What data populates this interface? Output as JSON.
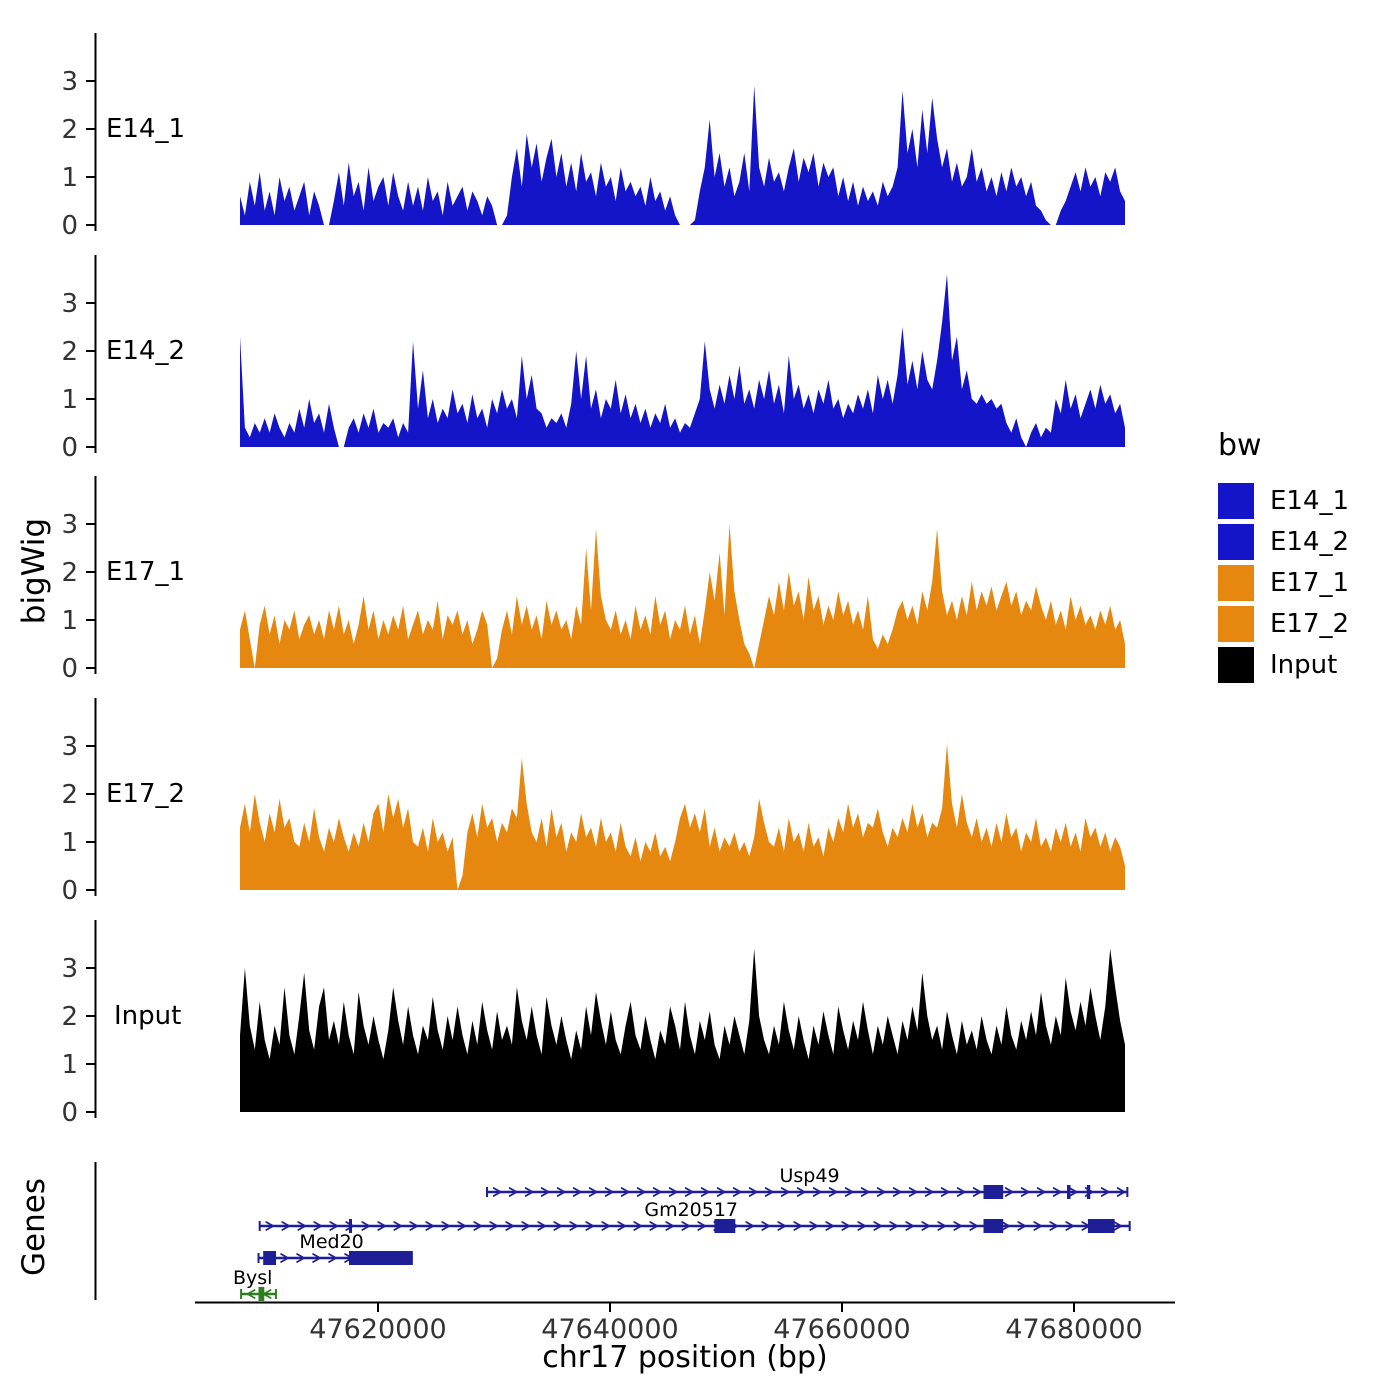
{
  "axes": {
    "y_title": "bigWig",
    "genes_title": "Genes",
    "x_title": "chr17 position (bp)"
  },
  "y_ticks": [
    0,
    1,
    2,
    3
  ],
  "x_ticks": [
    {
      "bp": 47620000,
      "label": "47620000"
    },
    {
      "bp": 47640000,
      "label": "47640000"
    },
    {
      "bp": 47660000,
      "label": "47660000"
    },
    {
      "bp": 47680000,
      "label": "47680000"
    }
  ],
  "chart_data": {
    "type": "area",
    "title": "",
    "xlabel": "chr17 position (bp)",
    "ylabel": "bigWig",
    "x_start": 47608100,
    "x_end": 47684400,
    "ylim": [
      0,
      3.6
    ],
    "tracks": [
      {
        "name": "E14_1",
        "color": "#1414C8",
        "values": [
          0.6,
          0.2,
          0.9,
          0.4,
          1.1,
          0.3,
          0.7,
          0.2,
          1.0,
          0.5,
          0.8,
          0.3,
          0.6,
          0.9,
          0.2,
          0.7,
          0.4,
          0.0,
          0.0,
          0.5,
          1.1,
          0.4,
          1.3,
          0.6,
          0.9,
          0.3,
          1.2,
          0.5,
          0.8,
          1.0,
          0.4,
          1.1,
          0.6,
          0.3,
          0.9,
          0.4,
          0.8,
          0.3,
          1.0,
          0.5,
          0.7,
          0.2,
          0.9,
          0.4,
          0.6,
          0.8,
          0.3,
          0.7,
          0.5,
          0.2,
          0.6,
          0.4,
          0.0,
          0.0,
          0.2,
          1.0,
          1.6,
          0.8,
          1.9,
          1.2,
          1.7,
          0.9,
          1.4,
          1.8,
          1.0,
          1.5,
          0.8,
          1.3,
          0.7,
          1.5,
          0.9,
          1.1,
          0.6,
          1.3,
          0.8,
          1.0,
          0.5,
          1.2,
          0.7,
          0.9,
          0.6,
          0.8,
          0.4,
          1.0,
          0.5,
          0.7,
          0.3,
          0.6,
          0.2,
          0.0,
          0.0,
          0.0,
          0.1,
          0.7,
          1.2,
          2.2,
          1.0,
          1.5,
          0.8,
          1.2,
          0.6,
          0.9,
          1.5,
          0.7,
          2.9,
          1.2,
          0.8,
          1.4,
          0.9,
          1.1,
          0.7,
          1.2,
          1.6,
          0.9,
          1.4,
          1.1,
          1.5,
          0.8,
          1.3,
          1.0,
          1.2,
          0.6,
          1.0,
          0.5,
          0.9,
          0.4,
          0.8,
          0.5,
          0.7,
          0.4,
          0.9,
          0.6,
          0.8,
          1.2,
          2.8,
          1.5,
          2.0,
          1.2,
          2.4,
          1.5,
          2.65,
          1.8,
          1.2,
          1.6,
          0.9,
          1.3,
          0.8,
          1.0,
          1.6,
          0.9,
          1.2,
          0.7,
          1.0,
          0.6,
          1.1,
          0.7,
          1.2,
          0.8,
          1.0,
          0.6,
          0.9,
          0.4,
          0.3,
          0.1,
          0.0,
          0.0,
          0.3,
          0.5,
          0.8,
          1.1,
          0.7,
          1.2,
          0.8,
          1.0,
          0.6,
          1.1,
          0.9,
          1.2,
          0.7,
          0.5
        ]
      },
      {
        "name": "E14_2",
        "color": "#1414C8",
        "values": [
          2.3,
          0.4,
          0.2,
          0.5,
          0.3,
          0.6,
          0.3,
          0.7,
          0.4,
          0.2,
          0.5,
          0.3,
          0.8,
          0.4,
          1.0,
          0.5,
          0.7,
          0.3,
          0.9,
          0.4,
          0.0,
          0.0,
          0.4,
          0.6,
          0.3,
          0.7,
          0.4,
          0.8,
          0.3,
          0.5,
          0.4,
          0.6,
          0.2,
          0.5,
          0.3,
          2.2,
          0.8,
          1.6,
          0.6,
          1.0,
          0.5,
          0.8,
          0.6,
          1.2,
          0.7,
          0.9,
          0.5,
          1.1,
          0.6,
          0.8,
          0.4,
          1.0,
          0.7,
          1.2,
          0.8,
          1.0,
          0.6,
          1.9,
          1.0,
          1.5,
          0.8,
          0.7,
          0.4,
          0.6,
          0.5,
          0.7,
          0.4,
          0.9,
          2.0,
          1.0,
          1.9,
          0.8,
          1.2,
          0.6,
          1.0,
          0.8,
          1.4,
          0.7,
          1.1,
          0.6,
          0.9,
          0.5,
          0.8,
          0.4,
          0.7,
          0.5,
          0.9,
          0.4,
          0.6,
          0.3,
          0.5,
          0.4,
          0.7,
          1.0,
          2.2,
          1.2,
          0.8,
          1.3,
          0.9,
          1.5,
          1.0,
          1.7,
          0.9,
          1.2,
          0.8,
          1.4,
          1.0,
          1.6,
          0.9,
          1.3,
          0.7,
          1.9,
          1.0,
          1.3,
          0.8,
          1.1,
          0.7,
          1.2,
          0.9,
          1.4,
          0.8,
          1.0,
          0.6,
          0.9,
          0.7,
          1.1,
          0.8,
          1.2,
          0.7,
          1.5,
          1.0,
          1.4,
          0.9,
          1.5,
          2.5,
          1.3,
          1.8,
          1.2,
          2.0,
          1.4,
          1.2,
          1.8,
          2.6,
          3.6,
          1.8,
          2.3,
          1.2,
          1.6,
          1.0,
          0.9,
          1.1,
          0.9,
          1.0,
          0.8,
          0.9,
          0.5,
          0.3,
          0.6,
          0.2,
          0.0,
          0.3,
          0.5,
          0.2,
          0.4,
          0.3,
          1.0,
          0.7,
          1.4,
          0.8,
          1.1,
          0.6,
          0.9,
          1.2,
          0.8,
          1.3,
          0.9,
          1.1,
          0.7,
          0.9,
          0.4
        ]
      },
      {
        "name": "E17_1",
        "color": "#E6870F",
        "values": [
          0.8,
          1.2,
          0.6,
          0.0,
          0.9,
          1.3,
          0.7,
          1.1,
          0.5,
          1.0,
          0.8,
          1.2,
          0.6,
          0.9,
          1.1,
          0.7,
          1.0,
          0.6,
          1.2,
          0.8,
          1.3,
          0.7,
          1.0,
          0.5,
          0.9,
          1.5,
          0.8,
          1.2,
          0.6,
          1.0,
          0.7,
          1.1,
          0.8,
          1.3,
          0.6,
          0.9,
          1.2,
          0.7,
          1.0,
          0.8,
          1.4,
          0.6,
          1.1,
          0.9,
          1.2,
          0.7,
          1.0,
          0.5,
          0.8,
          1.2,
          0.9,
          0.0,
          0.2,
          0.8,
          1.2,
          0.7,
          1.5,
          0.9,
          1.3,
          0.8,
          1.1,
          0.6,
          1.4,
          0.9,
          1.2,
          0.8,
          1.0,
          0.6,
          1.3,
          0.9,
          2.5,
          1.2,
          2.9,
          1.5,
          1.0,
          0.8,
          1.2,
          0.7,
          1.0,
          0.6,
          1.3,
          0.8,
          1.1,
          0.7,
          1.5,
          0.9,
          1.2,
          0.6,
          1.0,
          0.8,
          1.3,
          0.7,
          1.1,
          0.5,
          1.2,
          2.0,
          1.4,
          2.4,
          1.1,
          3.0,
          1.6,
          1.0,
          0.5,
          0.3,
          0.0,
          0.5,
          1.0,
          1.5,
          1.1,
          1.8,
          1.2,
          2.0,
          1.3,
          1.6,
          1.0,
          1.9,
          1.2,
          1.5,
          0.9,
          1.3,
          1.0,
          1.6,
          1.1,
          1.4,
          0.9,
          1.2,
          0.8,
          1.5,
          0.6,
          0.4,
          0.7,
          0.5,
          0.8,
          1.2,
          1.4,
          1.0,
          1.3,
          0.9,
          1.6,
          1.2,
          1.8,
          2.9,
          1.6,
          1.1,
          1.4,
          1.0,
          1.5,
          1.1,
          1.8,
          1.2,
          1.6,
          1.3,
          1.7,
          1.2,
          1.5,
          1.8,
          1.3,
          1.6,
          1.1,
          1.4,
          1.2,
          1.7,
          1.3,
          1.0,
          1.4,
          0.9,
          1.2,
          0.8,
          1.5,
          1.0,
          1.3,
          0.9,
          1.1,
          0.8,
          1.2,
          0.9,
          1.3,
          0.8,
          1.0,
          0.5
        ]
      },
      {
        "name": "E17_2",
        "color": "#E6870F",
        "values": [
          1.3,
          1.8,
          1.2,
          2.0,
          1.4,
          1.0,
          1.6,
          1.2,
          1.9,
          1.3,
          1.5,
          1.0,
          0.9,
          1.4,
          1.0,
          1.7,
          1.1,
          0.8,
          1.3,
          1.0,
          1.5,
          1.1,
          0.8,
          1.2,
          0.9,
          1.4,
          1.0,
          1.6,
          1.8,
          1.2,
          2.0,
          1.5,
          1.9,
          1.3,
          1.7,
          1.0,
          0.9,
          1.3,
          0.8,
          1.5,
          1.0,
          1.2,
          0.8,
          1.1,
          0.0,
          0.3,
          1.2,
          1.6,
          1.1,
          1.8,
          1.3,
          1.5,
          1.0,
          1.4,
          1.2,
          1.7,
          1.5,
          2.75,
          1.8,
          1.2,
          1.0,
          1.5,
          0.9,
          1.7,
          1.1,
          1.4,
          0.8,
          1.2,
          1.0,
          1.6,
          1.1,
          1.3,
          0.9,
          1.5,
          1.0,
          1.2,
          0.8,
          1.4,
          0.9,
          0.7,
          1.1,
          0.6,
          1.0,
          0.8,
          1.2,
          0.7,
          0.9,
          0.6,
          1.0,
          1.5,
          1.8,
          1.3,
          1.6,
          1.2,
          1.7,
          0.9,
          1.3,
          0.8,
          1.1,
          0.9,
          1.2,
          0.8,
          1.0,
          0.7,
          1.1,
          1.9,
          1.4,
          1.0,
          0.9,
          1.3,
          0.8,
          1.5,
          1.0,
          1.2,
          0.8,
          1.4,
          0.9,
          1.1,
          0.7,
          1.3,
          1.0,
          1.5,
          1.2,
          1.8,
          1.3,
          1.6,
          1.1,
          1.4,
          1.3,
          1.7,
          1.2,
          0.9,
          1.3,
          1.1,
          1.5,
          1.2,
          1.8,
          1.3,
          1.6,
          1.1,
          1.4,
          1.3,
          1.7,
          3.05,
          1.8,
          1.3,
          2.0,
          1.4,
          1.1,
          1.5,
          1.0,
          1.3,
          0.9,
          1.4,
          1.0,
          1.6,
          1.1,
          1.3,
          0.8,
          1.2,
          1.0,
          1.5,
          0.9,
          1.1,
          0.8,
          1.3,
          1.0,
          1.4,
          0.9,
          1.2,
          0.8,
          1.5,
          1.1,
          1.3,
          0.9,
          1.2,
          0.8,
          1.1,
          0.9,
          0.5
        ]
      },
      {
        "name": "Input",
        "color": "#000000",
        "values": [
          1.6,
          3.0,
          1.8,
          1.3,
          2.3,
          1.5,
          1.1,
          1.8,
          1.4,
          2.6,
          1.6,
          1.2,
          2.0,
          2.9,
          1.7,
          1.3,
          2.2,
          2.6,
          1.5,
          1.9,
          1.4,
          2.3,
          1.6,
          1.2,
          2.5,
          1.8,
          1.4,
          2.0,
          1.5,
          1.1,
          1.7,
          2.6,
          1.9,
          1.4,
          2.2,
          1.6,
          1.2,
          1.8,
          1.5,
          2.4,
          1.7,
          1.3,
          2.0,
          1.5,
          2.2,
          1.6,
          1.2,
          1.9,
          1.4,
          2.3,
          1.7,
          1.3,
          2.1,
          1.5,
          1.8,
          1.4,
          2.6,
          1.9,
          1.5,
          2.2,
          1.6,
          1.2,
          2.4,
          1.8,
          1.4,
          2.0,
          1.5,
          1.1,
          1.7,
          1.3,
          2.2,
          1.6,
          2.5,
          1.9,
          1.4,
          2.1,
          1.5,
          1.2,
          1.8,
          2.3,
          1.6,
          1.3,
          2.0,
          1.5,
          1.1,
          1.7,
          1.4,
          2.2,
          1.8,
          1.3,
          2.3,
          1.6,
          1.2,
          1.9,
          1.5,
          2.1,
          1.4,
          1.1,
          1.8,
          1.4,
          2.0,
          1.6,
          1.2,
          1.9,
          3.4,
          2.0,
          1.5,
          1.2,
          1.8,
          1.4,
          2.3,
          1.7,
          1.3,
          2.0,
          1.5,
          1.1,
          1.8,
          1.4,
          2.1,
          1.6,
          1.2,
          2.2,
          1.7,
          1.3,
          1.9,
          1.5,
          2.3,
          1.7,
          1.2,
          1.8,
          1.4,
          2.0,
          1.6,
          1.2,
          1.9,
          1.5,
          2.2,
          1.7,
          2.9,
          2.0,
          1.5,
          1.8,
          1.3,
          2.1,
          1.6,
          1.2,
          1.9,
          1.4,
          1.7,
          1.3,
          2.0,
          1.5,
          1.2,
          1.8,
          1.4,
          2.2,
          1.6,
          1.3,
          1.9,
          1.5,
          2.1,
          1.6,
          2.5,
          1.8,
          1.4,
          2.0,
          1.6,
          2.8,
          2.1,
          1.7,
          2.3,
          1.8,
          2.6,
          2.0,
          1.5,
          2.2,
          3.4,
          2.6,
          1.9,
          1.4
        ]
      }
    ]
  },
  "genes": [
    {
      "name": "Usp49",
      "strand": "+",
      "color": "#1E1E96",
      "start": 47629400,
      "end": 47684600,
      "label_bp": 47657200,
      "exons": [
        [
          47672200,
          47673900
        ],
        [
          47679400,
          47679700
        ],
        [
          47681100,
          47681400
        ]
      ]
    },
    {
      "name": "Gm20517",
      "strand": "+",
      "color": "#1E1E96",
      "start": 47609800,
      "end": 47684800,
      "label_bp": 47647000,
      "exons": [
        [
          47617500,
          47617700
        ],
        [
          47649000,
          47650800
        ],
        [
          47672200,
          47673900
        ],
        [
          47681200,
          47683500
        ]
      ]
    },
    {
      "name": "Med20",
      "strand": "+",
      "color": "#1E1E96",
      "start": 47609700,
      "end": 47622900,
      "label_bp": 47616000,
      "exons": [
        [
          47610100,
          47611200
        ],
        [
          47617500,
          47623000
        ]
      ]
    },
    {
      "name": "Bysl",
      "strand": "-",
      "color": "#2E7D20",
      "start": 47608200,
      "end": 47611200,
      "label_bp": 47609200,
      "exons": [
        [
          47609700,
          47610200
        ]
      ]
    }
  ],
  "legend": {
    "title": "bw",
    "entries": [
      {
        "label": "E14_1",
        "color": "#1414C8"
      },
      {
        "label": "E14_2",
        "color": "#1414C8"
      },
      {
        "label": "E17_1",
        "color": "#E6870F"
      },
      {
        "label": "E17_2",
        "color": "#E6870F"
      },
      {
        "label": "Input",
        "color": "#000000"
      }
    ]
  }
}
